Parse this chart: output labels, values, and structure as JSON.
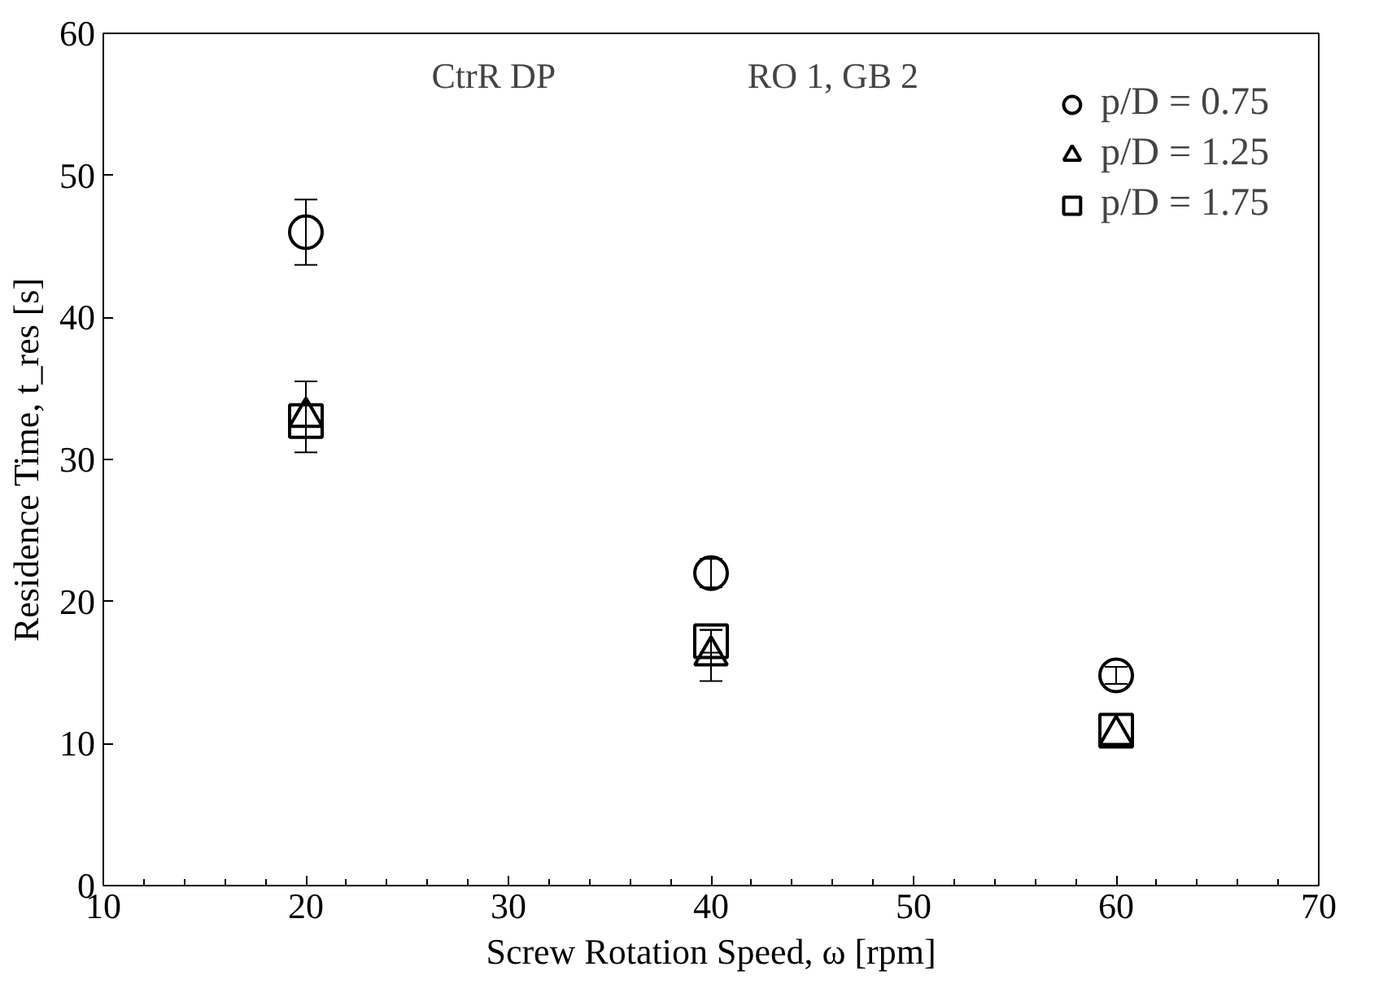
{
  "chart_data": {
    "type": "scatter",
    "xlabel": "Screw Rotation Speed, ω [rpm]",
    "ylabel": "Residence Time, t_res [s]",
    "annotations": [
      "CtrR DP",
      "RO 1, GB 2"
    ],
    "x": [
      20,
      40,
      60
    ],
    "xlim": [
      10,
      70
    ],
    "xticks": [
      10,
      20,
      30,
      40,
      50,
      60,
      70
    ],
    "ylim": [
      0,
      60
    ],
    "yticks": [
      0,
      10,
      20,
      30,
      40,
      50,
      60
    ],
    "grid": false,
    "legend": "top right",
    "series": [
      {
        "name": "p/D = 0.75",
        "color": "#000000",
        "marker": "circle",
        "values": [
          46,
          22,
          14.8
        ],
        "errors": [
          2.3,
          1,
          0.6
        ]
      },
      {
        "name": "p/D = 1.25",
        "color": "#000000",
        "marker": "triangle",
        "values": [
          33.0,
          16.2,
          10.6
        ],
        "errors": [
          2.5,
          1.8,
          null
        ]
      },
      {
        "name": "p/D = 1.75",
        "color": "#000000",
        "marker": "square",
        "values": [
          32.7,
          17.2,
          10.9
        ],
        "errors": [
          null,
          0.8,
          null
        ]
      }
    ]
  }
}
